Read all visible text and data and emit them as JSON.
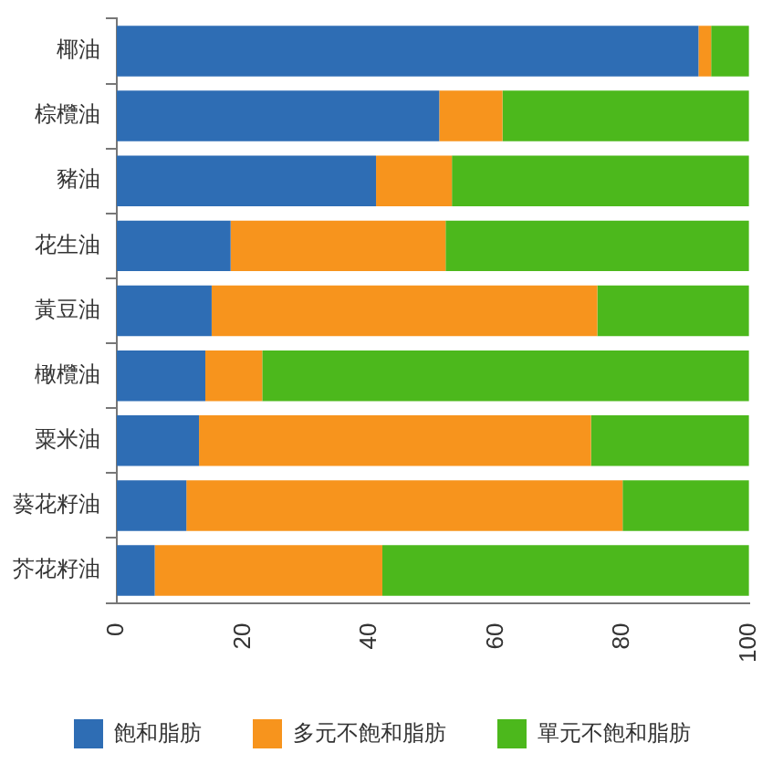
{
  "chart_data": {
    "type": "bar",
    "orientation": "horizontal",
    "stacked": true,
    "categories": [
      "椰油",
      "棕欖油",
      "豬油",
      "花生油",
      "黃豆油",
      "橄欖油",
      "粟米油",
      "葵花籽油",
      "芥花籽油"
    ],
    "series": [
      {
        "name": "飽和脂肪",
        "color": "#2e6db4",
        "values": [
          92,
          51,
          41,
          18,
          15,
          14,
          13,
          11,
          6
        ]
      },
      {
        "name": "多元不飽和脂肪",
        "color": "#f7941d",
        "values": [
          2,
          10,
          12,
          34,
          61,
          9,
          62,
          69,
          36
        ]
      },
      {
        "name": "單元不飽和脂肪",
        "color": "#4cb81c",
        "values": [
          6,
          39,
          47,
          48,
          24,
          77,
          25,
          20,
          58
        ]
      }
    ],
    "xlim": [
      0,
      100
    ],
    "xticks": [
      0,
      20,
      40,
      60,
      80,
      100
    ],
    "grid": false,
    "legend": "bottom"
  }
}
